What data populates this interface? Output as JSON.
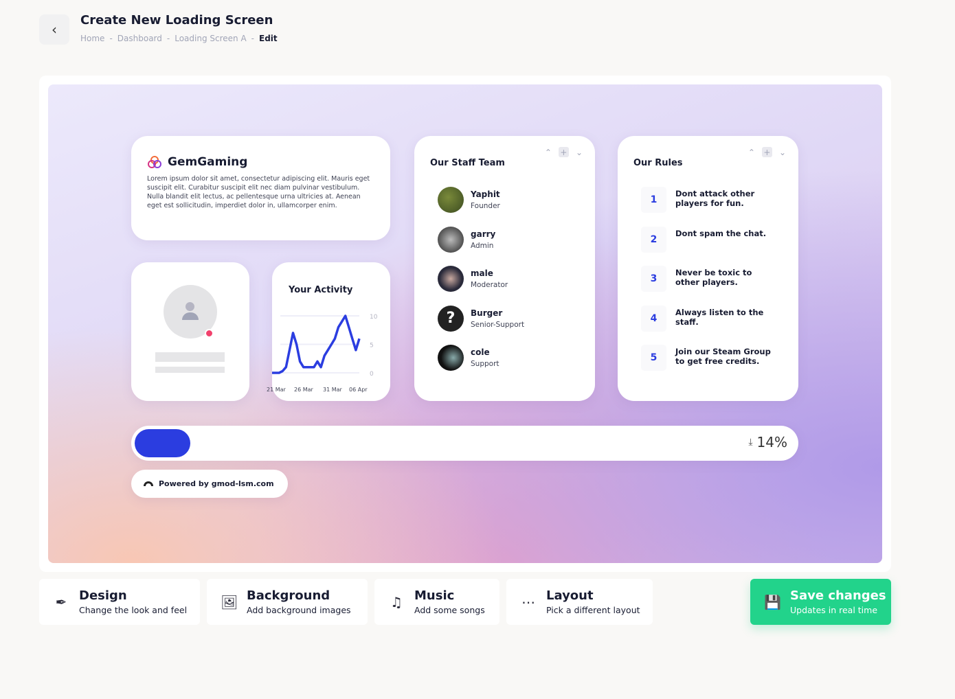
{
  "header": {
    "title": "Create New Loading Screen",
    "breadcrumbs": [
      "Home",
      "Dashboard",
      "Loading Screen A",
      "Edit"
    ],
    "separator": "-"
  },
  "brand_card": {
    "name": "GemGaming",
    "text": "Lorem ipsum dolor sit amet, consectetur adipiscing elit. Mauris eget suscipit elit. Curabitur suscipit elit nec diam pulvinar vestibulum. Nulla blandit elit lectus, ac pellentesque urna ultricies at. Aenean eget est sollicitudin, imperdiet dolor in, ullamcorper enim."
  },
  "profile_card": {
    "status_color": "#f1416c"
  },
  "activity": {
    "title": "Your Activity"
  },
  "chart_data": {
    "type": "line",
    "title": "Your Activity",
    "x_ticks": [
      "21 Mar",
      "26 Mar",
      "31 Mar",
      "06 Apr"
    ],
    "y_ticks": [
      "10",
      "5",
      "0"
    ],
    "ylim": [
      0,
      10
    ],
    "grid": true,
    "color": "#2b3de0",
    "values": [
      0,
      0,
      0,
      0.3,
      1,
      4,
      7,
      5,
      2,
      1,
      1,
      1,
      1,
      2,
      1,
      3,
      4,
      5,
      6,
      8,
      9,
      10,
      8,
      6,
      4,
      6
    ]
  },
  "staff": {
    "title": "Our Staff Team",
    "members": [
      {
        "name": "Yaphit",
        "role": "Founder"
      },
      {
        "name": "garry",
        "role": "Admin"
      },
      {
        "name": "male",
        "role": "Moderator"
      },
      {
        "name": "Burger",
        "role": "Senior-Support"
      },
      {
        "name": "cole",
        "role": "Support"
      }
    ]
  },
  "rules": {
    "title": "Our Rules",
    "items": [
      {
        "n": "1",
        "text": "Dont attack other players for fun."
      },
      {
        "n": "2",
        "text": "Dont spam the chat."
      },
      {
        "n": "3",
        "text": "Never be toxic to other players."
      },
      {
        "n": "4",
        "text": "Always listen to the staff."
      },
      {
        "n": "5",
        "text": "Join our Steam Group to get free credits."
      }
    ]
  },
  "progress": {
    "percent": 14,
    "label": "14%",
    "color": "#2b3de0"
  },
  "powered": {
    "label": "Powered by gmod-lsm.com"
  },
  "tabs": [
    {
      "title": "Design",
      "subtitle": "Change the look and feel",
      "icon": "brush-icon"
    },
    {
      "title": "Background",
      "subtitle": "Add background images",
      "icon": "image-icon"
    },
    {
      "title": "Music",
      "subtitle": "Add some songs",
      "icon": "music-icon"
    },
    {
      "title": "Layout",
      "subtitle": "Pick a different layout",
      "icon": "grid-icon"
    }
  ],
  "save": {
    "title": "Save changes",
    "subtitle": "Updates in real time",
    "color": "#22d38b",
    "icon": "save-icon"
  }
}
